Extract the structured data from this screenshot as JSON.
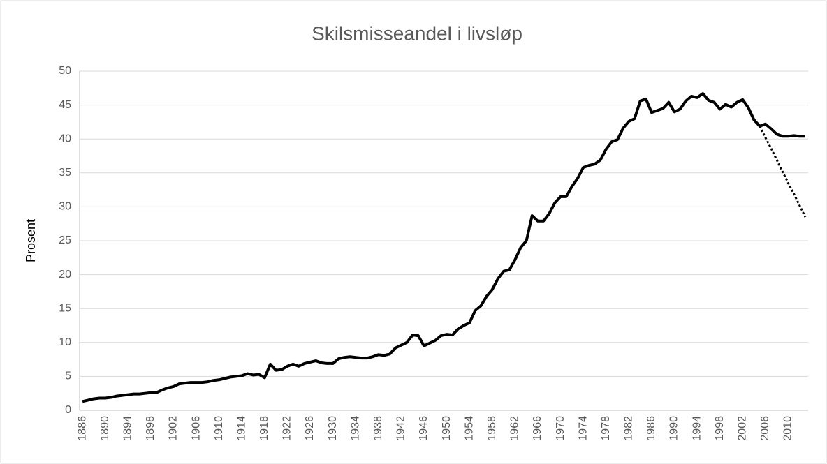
{
  "chart_data": {
    "type": "line",
    "title": "Skilsmisseandel i livsløp",
    "y_label": "Prosent",
    "categories": [
      "1886",
      null,
      null,
      null,
      "1890",
      null,
      null,
      null,
      "1894",
      null,
      null,
      null,
      "1898",
      null,
      null,
      null,
      "1902",
      null,
      null,
      null,
      "1906",
      null,
      null,
      null,
      "1910",
      null,
      null,
      null,
      "1914",
      null,
      null,
      null,
      "1918",
      null,
      null,
      null,
      "1922",
      null,
      null,
      null,
      "1926",
      null,
      null,
      null,
      "1930",
      null,
      null,
      null,
      "1934",
      null,
      null,
      null,
      "1938",
      null,
      null,
      null,
      "1942",
      null,
      null,
      null,
      "1946",
      null,
      null,
      null,
      "1950",
      null,
      null,
      null,
      "1954",
      null,
      null,
      null,
      "1958",
      null,
      null,
      null,
      "1962",
      null,
      null,
      null,
      "1966",
      null,
      null,
      null,
      "1970",
      null,
      null,
      null,
      "1974",
      null,
      null,
      null,
      "1978",
      null,
      null,
      null,
      "1982",
      null,
      null,
      null,
      "1986",
      null,
      null,
      null,
      "1990",
      null,
      null,
      null,
      "1994",
      null,
      null,
      null,
      "1998",
      null,
      null,
      null,
      "2002",
      null,
      null,
      null,
      "2006",
      null,
      null,
      null,
      "2010",
      null,
      null,
      null
    ],
    "series": [
      {
        "color": "#000000",
        "line_style": "solid",
        "values": [
          1.3,
          1.5,
          1.7,
          1.8,
          1.8,
          1.9,
          2.1,
          2.2,
          2.3,
          2.4,
          2.4,
          2.5,
          2.6,
          2.6,
          3.0,
          3.3,
          3.5,
          3.9,
          4.0,
          4.1,
          4.1,
          4.1,
          4.2,
          4.4,
          4.5,
          4.7,
          4.9,
          5.0,
          5.1,
          5.4,
          5.2,
          5.3,
          4.8,
          6.8,
          5.9,
          6.0,
          6.5,
          6.8,
          6.5,
          6.9,
          7.1,
          7.3,
          7.0,
          6.9,
          6.9,
          7.6,
          7.8,
          7.9,
          7.8,
          7.7,
          7.7,
          7.9,
          8.2,
          8.1,
          8.3,
          9.2,
          9.6,
          10.0,
          11.1,
          11.0,
          9.5,
          9.9,
          10.3,
          11.0,
          11.2,
          11.1,
          12.0,
          12.5,
          12.9,
          14.7,
          15.4,
          16.8,
          17.8,
          19.4,
          20.5,
          20.7,
          22.2,
          24.0,
          25.0,
          28.7,
          27.9,
          27.9,
          29.0,
          30.6,
          31.5,
          31.5,
          33.0,
          34.2,
          35.8,
          36.1,
          36.3,
          36.9,
          38.5,
          39.6,
          39.9,
          41.6,
          42.6,
          43.0,
          45.6,
          45.9,
          43.9,
          44.2,
          44.5,
          45.4,
          44.0,
          44.4,
          45.6,
          46.3,
          46.1,
          46.7,
          45.7,
          45.4,
          44.4,
          45.1,
          44.7,
          45.4,
          45.8,
          44.6,
          42.8,
          41.9,
          42.2,
          41.5,
          40.7,
          40.4,
          40.4,
          40.5,
          40.4,
          40.4
        ]
      },
      {
        "color": "#000000",
        "line_style": "dotted",
        "values": [
          null,
          null,
          null,
          null,
          null,
          null,
          null,
          null,
          null,
          null,
          null,
          null,
          null,
          null,
          null,
          null,
          null,
          null,
          null,
          null,
          null,
          null,
          null,
          null,
          null,
          null,
          null,
          null,
          null,
          null,
          null,
          null,
          null,
          null,
          null,
          null,
          null,
          null,
          null,
          null,
          null,
          null,
          null,
          null,
          null,
          null,
          null,
          null,
          null,
          null,
          null,
          null,
          null,
          null,
          null,
          null,
          null,
          null,
          null,
          null,
          null,
          null,
          null,
          null,
          null,
          null,
          null,
          null,
          null,
          null,
          null,
          null,
          null,
          null,
          null,
          null,
          null,
          null,
          null,
          null,
          null,
          null,
          null,
          null,
          null,
          null,
          null,
          null,
          null,
          null,
          null,
          null,
          null,
          null,
          null,
          null,
          null,
          null,
          null,
          null,
          null,
          null,
          null,
          null,
          null,
          null,
          null,
          null,
          null,
          null,
          null,
          null,
          null,
          null,
          null,
          null,
          null,
          null,
          null,
          41.9,
          40.2,
          38.6,
          36.9,
          35.2,
          33.5,
          31.9,
          30.2,
          28.5
        ]
      }
    ],
    "ylim": [
      0,
      50
    ],
    "yticks": [
      0,
      5,
      10,
      15,
      20,
      25,
      30,
      35,
      40,
      45,
      50
    ],
    "grid": true
  }
}
